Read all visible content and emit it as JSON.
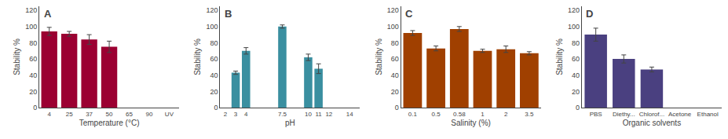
{
  "chart_data": [
    {
      "type": "bar",
      "annotations": [
        "A"
      ],
      "categories": [
        "4",
        "25",
        "37",
        "50",
        "65",
        "90",
        "UV"
      ],
      "values": [
        94,
        91,
        84,
        75,
        null,
        null,
        null
      ],
      "errors": [
        5,
        3,
        6,
        7,
        null,
        null,
        null
      ],
      "color": "#9B0032",
      "xlabel": "Temperature (°C)",
      "ylabel": "Stability %",
      "ylim": [
        0,
        125
      ],
      "yticks": [
        0,
        20,
        40,
        60,
        80,
        100,
        120
      ],
      "grid": false
    },
    {
      "type": "bar",
      "annotations": [
        "B"
      ],
      "x": [
        3,
        4,
        7.5,
        10,
        11
      ],
      "values": [
        43,
        70,
        100,
        62,
        48
      ],
      "errors": [
        2,
        4,
        2,
        4,
        6
      ],
      "color": "#3a8fa0",
      "xlabel": "pH",
      "ylabel": "Stability %",
      "xlim": [
        1.5,
        15
      ],
      "xticks": [
        2,
        3,
        4,
        7.5,
        10,
        11,
        12,
        14
      ],
      "ylim": [
        0,
        125
      ],
      "yticks": [
        0,
        20,
        40,
        60,
        80,
        100,
        120
      ],
      "grid": false
    },
    {
      "type": "bar",
      "annotations": [
        "C"
      ],
      "categories": [
        "0.1",
        "0.5",
        "0.58",
        "1",
        "2",
        "3.5"
      ],
      "values": [
        92,
        73,
        97,
        70,
        72,
        67
      ],
      "errors": [
        3,
        3,
        3,
        2,
        4,
        2
      ],
      "color": "#a04000",
      "xlabel": "Salinity (%)",
      "ylabel": "Stability %",
      "ylim": [
        0,
        125
      ],
      "yticks": [
        0,
        20,
        40,
        60,
        80,
        100,
        120
      ],
      "grid": false
    },
    {
      "type": "bar",
      "annotations": [
        "D"
      ],
      "categories": [
        "PBS",
        "Diethy...",
        "Chlorof...",
        "Acetone",
        "Ethanol"
      ],
      "values": [
        90,
        60,
        47,
        null,
        null
      ],
      "errors": [
        8,
        5,
        3,
        null,
        null
      ],
      "color": "#4a4080",
      "xlabel": "Organic solvents",
      "ylabel": "Stability %",
      "ylim": [
        0,
        125
      ],
      "yticks": [
        0,
        20,
        40,
        60,
        80,
        100,
        120
      ],
      "grid": false
    }
  ]
}
